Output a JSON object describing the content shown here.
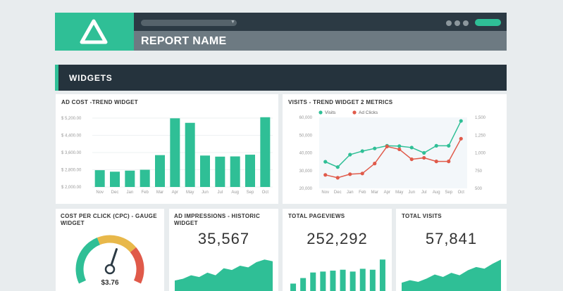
{
  "header": {
    "report_name": "REPORT NAME",
    "accent_color": "#2fbf96",
    "logo_icon": "triangle-logo-icon"
  },
  "banner": {
    "title": "WIDGETS"
  },
  "widgets": {
    "ad_cost": {
      "title": "AD COST -TREND WIDGET",
      "chart_data": {
        "type": "bar",
        "categories": [
          "Nov",
          "Dec",
          "Jan",
          "Feb",
          "Mar",
          "Apr",
          "May",
          "Jun",
          "Jul",
          "Aug",
          "Sep",
          "Oct"
        ],
        "values": [
          2780,
          2710,
          2760,
          2800,
          3480,
          5190,
          4980,
          3460,
          3410,
          3420,
          3500,
          5240
        ],
        "ylim": [
          2000,
          5200
        ],
        "yticks": [
          "$ 5,200.00",
          "$ 4,400.00",
          "$ 3,600.00",
          "$ 2,800.00",
          "$ 2,000.00"
        ],
        "ytick_values": [
          5200,
          4400,
          3600,
          2800,
          2000
        ],
        "color": "#2fbf96"
      }
    },
    "visits": {
      "title": "VISITS - TREND WIDGET 2 METRICS",
      "chart_data": {
        "type": "line",
        "categories": [
          "Nov",
          "Dec",
          "Jan",
          "Feb",
          "Mar",
          "Apr",
          "May",
          "Jun",
          "Jul",
          "Aug",
          "Sep",
          "Oct"
        ],
        "series": [
          {
            "name": "Visits",
            "axis": "left",
            "color": "#2fbf96",
            "values": [
              35000,
              32000,
              39000,
              41000,
              42500,
              44000,
              43800,
              43000,
              40000,
              44000,
              44000,
              58000
            ]
          },
          {
            "name": "Ad Clicks",
            "axis": "right",
            "color": "#e05a4a",
            "values": [
              690,
              650,
              700,
              710,
              850,
              1090,
              1050,
              910,
              930,
              880,
              880,
              1200
            ]
          }
        ],
        "left_ticks": [
          "60,000",
          "50,000",
          "40,000",
          "30,000",
          "20,000"
        ],
        "left_tick_values": [
          60000,
          50000,
          40000,
          30000,
          20000
        ],
        "left_lim": [
          20000,
          60000
        ],
        "right_ticks": [
          "1,500",
          "1,250",
          "1,000",
          "750",
          "500"
        ],
        "right_tick_values": [
          1500,
          1250,
          1000,
          750,
          500
        ],
        "right_lim": [
          500,
          1500
        ],
        "legend_position": "top-left"
      }
    },
    "cpc": {
      "title": "COST PER CLICK (CPC) - GAUGE WIDGET",
      "value": "$3.76",
      "needle_fraction": 0.58,
      "colors": [
        "#2fbf96",
        "#e8b84a",
        "#e05a4a"
      ]
    },
    "impressions": {
      "title": "AD IMPRESSIONS - HISTORIC WIDGET",
      "value": "35,567",
      "chart_data": {
        "type": "area",
        "values": [
          12,
          14,
          18,
          16,
          21,
          18,
          26,
          24,
          29,
          27,
          33,
          36,
          34
        ]
      }
    },
    "pageviews": {
      "title": "TOTAL PAGEVIEWS",
      "value": "252,292",
      "chart_data": {
        "type": "bar",
        "values": [
          8,
          14,
          20,
          21,
          22,
          23,
          21,
          24,
          23,
          34
        ]
      }
    },
    "total_visits": {
      "title": "TOTAL VISITS",
      "value": "57,841",
      "chart_data": {
        "type": "area",
        "values": [
          10,
          13,
          11,
          15,
          20,
          17,
          22,
          19,
          25,
          29,
          27,
          33,
          38
        ]
      }
    }
  }
}
